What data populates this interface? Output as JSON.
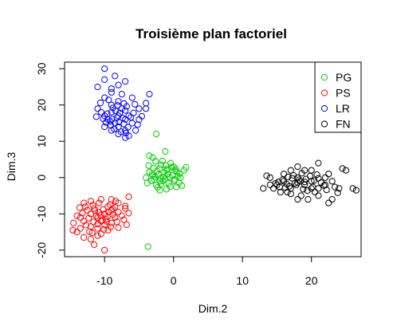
{
  "chart_data": {
    "type": "scatter",
    "title": "Troisième plan factoriel",
    "xlabel": "Dim.2",
    "ylabel": "Dim.3",
    "xlim": [
      -15.8,
      27.2
    ],
    "ylim": [
      -21.8,
      31.8
    ],
    "xticks": [
      -10,
      0,
      10,
      20
    ],
    "xtick_labels": [
      "-10",
      "0",
      "10",
      "20"
    ],
    "yticks": [
      -20,
      -10,
      0,
      10,
      20,
      30
    ],
    "ytick_labels": [
      "-20",
      "-10",
      "0",
      "10",
      "20",
      "30"
    ],
    "grid": false,
    "legend_position": "top-right",
    "series": [
      {
        "name": "PG",
        "color": "#00cd00",
        "points": [
          [
            -1.5,
            0.2
          ],
          [
            -0.8,
            1.0
          ],
          [
            0.2,
            -0.5
          ],
          [
            -2.0,
            -1.0
          ],
          [
            -1.0,
            2.0
          ],
          [
            0.5,
            1.5
          ],
          [
            -3.0,
            0.5
          ],
          [
            -2.5,
            -2.0
          ],
          [
            0.0,
            3.0
          ],
          [
            1.0,
            0.0
          ],
          [
            -1.8,
            3.5
          ],
          [
            -3.5,
            1.5
          ],
          [
            0.8,
            -1.5
          ],
          [
            -0.5,
            -2.5
          ],
          [
            1.5,
            2.0
          ],
          [
            -2.2,
            0.8
          ],
          [
            -1.2,
            -0.4
          ],
          [
            -0.2,
            0.6
          ],
          [
            0.3,
            2.4
          ],
          [
            -2.8,
            -0.6
          ],
          [
            -4.0,
            0.0
          ],
          [
            -3.8,
            -1.5
          ],
          [
            -1.6,
            4.6
          ],
          [
            -2.6,
            4.5
          ],
          [
            -0.4,
            4.0
          ],
          [
            1.8,
            2.8
          ],
          [
            1.2,
            -2.2
          ],
          [
            -1.0,
            -3.2
          ],
          [
            -2.0,
            -3.5
          ],
          [
            -3.0,
            5.5
          ],
          [
            -3.5,
            6.0
          ],
          [
            -1.2,
            7.2
          ],
          [
            -2.0,
            2.5
          ],
          [
            -0.7,
            -1.6
          ],
          [
            0.1,
            -0.9
          ],
          [
            -1.4,
            1.4
          ],
          [
            -2.4,
            1.8
          ],
          [
            0.9,
            1.1
          ],
          [
            -3.2,
            -0.9
          ],
          [
            -0.3,
            2.9
          ],
          [
            -1.8,
            -1.8
          ],
          [
            -2.9,
            2.6
          ],
          [
            0.4,
            -2.6
          ],
          [
            -1.1,
            3.3
          ],
          [
            -3.6,
            3.3
          ],
          [
            -0.6,
            0.1
          ],
          [
            -2.3,
            -2.7
          ],
          [
            0.6,
            0.4
          ],
          [
            -1.5,
            -0.9
          ],
          [
            -2.7,
            0.2
          ],
          [
            -0.9,
            2.4
          ],
          [
            -3.1,
            1.0
          ],
          [
            -1.9,
            -0.2
          ],
          [
            0.2,
            1.9
          ],
          [
            -2.5,
            12.0
          ],
          [
            -3.7,
            -19.0
          ]
        ]
      },
      {
        "name": "PS",
        "color": "#ff0000",
        "points": [
          [
            -10,
            -10
          ],
          [
            -11,
            -11
          ],
          [
            -9,
            -9
          ],
          [
            -12,
            -10
          ],
          [
            -10.5,
            -12
          ],
          [
            -9.5,
            -8
          ],
          [
            -11.5,
            -8.5
          ],
          [
            -8.5,
            -11
          ],
          [
            -13,
            -12
          ],
          [
            -12.5,
            -9
          ],
          [
            -10,
            -13
          ],
          [
            -11,
            -14
          ],
          [
            -9,
            -12.5
          ],
          [
            -8,
            -9.5
          ],
          [
            -10.8,
            -7
          ],
          [
            -12,
            -13.5
          ],
          [
            -13.5,
            -11
          ],
          [
            -9.8,
            -11.5
          ],
          [
            -10.2,
            -8.8
          ],
          [
            -11.2,
            -10.5
          ],
          [
            -8.8,
            -10.2
          ],
          [
            -9.2,
            -7.5
          ],
          [
            -12.8,
            -8
          ],
          [
            -13.5,
            -14
          ],
          [
            -14,
            -15
          ],
          [
            -11.8,
            -15.2
          ],
          [
            -10.5,
            -15.5
          ],
          [
            -9.5,
            -14.5
          ],
          [
            -8.2,
            -12.2
          ],
          [
            -7.5,
            -10.5
          ],
          [
            -7,
            -8.5
          ],
          [
            -8,
            -7
          ],
          [
            -9,
            -6
          ],
          [
            -10.5,
            -6
          ],
          [
            -12,
            -6.5
          ],
          [
            -13,
            -7
          ],
          [
            -14,
            -10.5
          ],
          [
            -14.5,
            -12.5
          ],
          [
            -13,
            -16.5
          ],
          [
            -12,
            -17
          ],
          [
            -11,
            -16
          ],
          [
            -10,
            -20
          ],
          [
            -7,
            -7.8
          ],
          [
            -6.5,
            -9.8
          ],
          [
            -8.5,
            -8.2
          ],
          [
            -9.6,
            -10.8
          ],
          [
            -10.8,
            -9.6
          ],
          [
            -11.6,
            -12.2
          ],
          [
            -12.3,
            -11.2
          ],
          [
            -9.1,
            -13.6
          ],
          [
            -10.3,
            -11.8
          ],
          [
            -11.4,
            -9.1
          ],
          [
            -8.8,
            -8.6
          ],
          [
            -12.7,
            -13.1
          ],
          [
            -13.2,
            -9.8
          ],
          [
            -8.0,
            -13.8
          ],
          [
            -10.1,
            -14.3
          ],
          [
            -11.7,
            -7.6
          ],
          [
            -12.2,
            -14.9
          ],
          [
            -9.7,
            -12.1
          ],
          [
            -7.2,
            -11.6
          ],
          [
            -14.6,
            -14.5
          ],
          [
            -6.8,
            -13
          ],
          [
            -6.5,
            -5.3
          ],
          [
            -11.5,
            -18.5
          ],
          [
            -13.6,
            -8.3
          ],
          [
            -8.4,
            -6.5
          ],
          [
            -10.6,
            -10.4
          ],
          [
            -9.4,
            -9.5
          ],
          [
            -11.0,
            -12.8
          ]
        ]
      },
      {
        "name": "LR",
        "color": "#0000ff",
        "points": [
          [
            -8,
            17
          ],
          [
            -7,
            16
          ],
          [
            -9,
            18
          ],
          [
            -8.5,
            15
          ],
          [
            -7.5,
            19
          ],
          [
            -9.5,
            16
          ],
          [
            -6.5,
            17
          ],
          [
            -8,
            14
          ],
          [
            -7,
            13
          ],
          [
            -9,
            20
          ],
          [
            -10,
            17
          ],
          [
            -8,
            21
          ],
          [
            -6,
            15
          ],
          [
            -7,
            18.5
          ],
          [
            -9.2,
            15.5
          ],
          [
            -8.2,
            16.5
          ],
          [
            -7.8,
            17.8
          ],
          [
            -10.5,
            18
          ],
          [
            -11,
            19
          ],
          [
            -10,
            14
          ],
          [
            -9,
            13
          ],
          [
            -8,
            12
          ],
          [
            -6.5,
            11.5
          ],
          [
            -5.5,
            13
          ],
          [
            -5,
            16
          ],
          [
            -5,
            19
          ],
          [
            -6,
            22
          ],
          [
            -7.5,
            23
          ],
          [
            -9,
            23.5
          ],
          [
            -10,
            22
          ],
          [
            -11,
            25
          ],
          [
            -10,
            27
          ],
          [
            -9,
            24.5
          ],
          [
            -8,
            25.5
          ],
          [
            -7,
            26.5
          ],
          [
            -8.5,
            28
          ],
          [
            -10,
            30
          ],
          [
            -4,
            20.5
          ],
          [
            -4,
            19
          ],
          [
            -3.5,
            23
          ],
          [
            -7,
            11
          ],
          [
            -8.8,
            19.2
          ],
          [
            -9.6,
            17.6
          ],
          [
            -7.2,
            14.8
          ],
          [
            -8.6,
            13.4
          ],
          [
            -7.4,
            16.4
          ],
          [
            -6.8,
            19.6
          ],
          [
            -9.8,
            15.2
          ],
          [
            -8.4,
            18.4
          ],
          [
            -6.2,
            16.6
          ],
          [
            -10.2,
            16.2
          ],
          [
            -7.6,
            12.6
          ],
          [
            -5.8,
            17.8
          ],
          [
            -9.4,
            21.4
          ],
          [
            -8.9,
            16.1
          ],
          [
            -7.9,
            15.3
          ],
          [
            -6.6,
            13.9
          ],
          [
            -10.6,
            20.6
          ],
          [
            -11.2,
            16.8
          ],
          [
            -5.2,
            14.6
          ],
          [
            -7.2,
            20.4
          ],
          [
            -8.1,
            19.9
          ],
          [
            -9.1,
            14.4
          ],
          [
            -6.9,
            12.3
          ],
          [
            -4.6,
            16.9
          ],
          [
            -5.6,
            20.2
          ]
        ]
      },
      {
        "name": "FN",
        "color": "#000000",
        "points": [
          [
            15,
            -2
          ],
          [
            16,
            -1
          ],
          [
            17,
            -3
          ],
          [
            18,
            0
          ],
          [
            19,
            -2
          ],
          [
            20,
            -1
          ],
          [
            21,
            -3
          ],
          [
            22,
            0
          ],
          [
            16.5,
            -4
          ],
          [
            18.5,
            -5
          ],
          [
            20.5,
            -4
          ],
          [
            22,
            -2
          ],
          [
            23,
            -1
          ],
          [
            24,
            -3
          ],
          [
            14,
            -2
          ],
          [
            13,
            -3
          ],
          [
            13.5,
            0.5
          ],
          [
            14,
            0
          ],
          [
            16,
            1
          ],
          [
            17,
            2
          ],
          [
            18,
            3
          ],
          [
            19,
            2
          ],
          [
            20,
            2
          ],
          [
            21,
            4
          ],
          [
            22.5,
            1
          ],
          [
            24.5,
            2.5
          ],
          [
            25,
            2
          ],
          [
            26,
            -3
          ],
          [
            26.5,
            -3.5
          ],
          [
            23,
            -6
          ],
          [
            22.5,
            -7
          ],
          [
            21,
            -5
          ],
          [
            19.5,
            -6
          ],
          [
            18,
            -6
          ],
          [
            17,
            -4.5
          ],
          [
            15.5,
            -4
          ],
          [
            14.5,
            -3
          ],
          [
            15.2,
            -1.2
          ],
          [
            16.8,
            -2.4
          ],
          [
            17.6,
            -1.6
          ],
          [
            18.4,
            -1.0
          ],
          [
            19.2,
            -0.4
          ],
          [
            20.2,
            -2.6
          ],
          [
            21.4,
            -1.4
          ],
          [
            17.2,
            -0.2
          ],
          [
            18.8,
            -3.2
          ],
          [
            16.2,
            -2.8
          ],
          [
            19.8,
            0.4
          ],
          [
            20.8,
            0.8
          ],
          [
            21.8,
            -2.2
          ],
          [
            15.8,
            -0.6
          ],
          [
            17.8,
            -2.0
          ],
          [
            18.2,
            -0.6
          ],
          [
            16.4,
            -1.8
          ],
          [
            19.4,
            -3.6
          ],
          [
            22.2,
            -3.4
          ],
          [
            23.4,
            -2.6
          ],
          [
            14.8,
            -1.6
          ],
          [
            18.6,
            1.2
          ],
          [
            20.4,
            -0.8
          ],
          [
            17.4,
            0.6
          ],
          [
            15.4,
            -2.6
          ],
          [
            19.0,
            -1.2
          ],
          [
            21.0,
            -0.2
          ],
          [
            23.8,
            -4.2
          ],
          [
            16.6,
            0.2
          ],
          [
            18.0,
            -1.4
          ],
          [
            20.0,
            -3.0
          ]
        ]
      }
    ]
  }
}
